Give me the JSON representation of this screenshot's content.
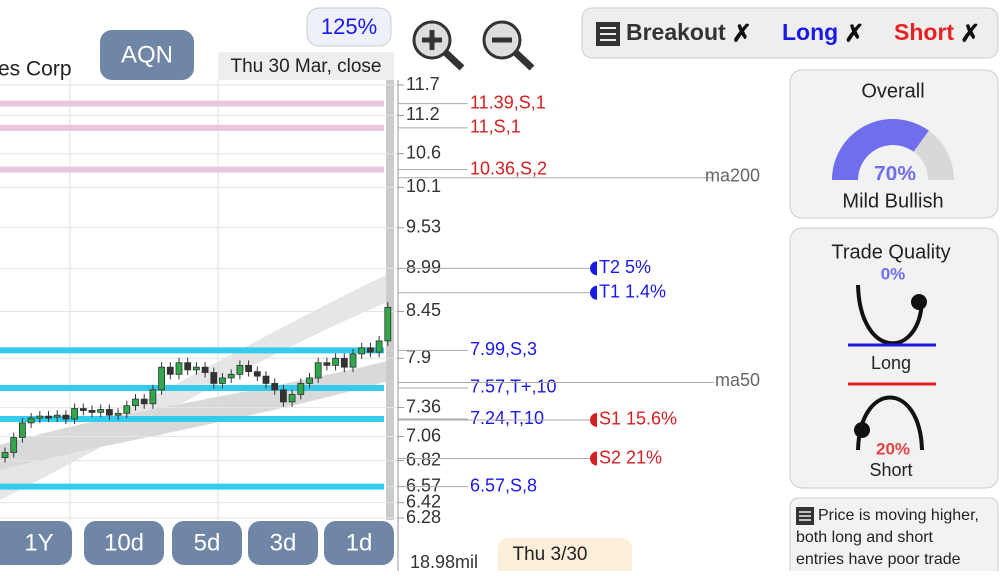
{
  "header": {
    "company": "es Corp",
    "ticker": "AQN",
    "zoom": "125%",
    "date": "Thu 30 Mar, close"
  },
  "filters": [
    {
      "label": "Breakout",
      "mark": "✗",
      "color": "#333333"
    },
    {
      "label": "Long",
      "mark": "✗",
      "color": "#1a1ae6"
    },
    {
      "label": "Short",
      "mark": "✗",
      "color": "#e62222"
    }
  ],
  "price_axis": {
    "ticks": [
      11.7,
      11.2,
      10.6,
      10.1,
      9.53,
      8.99,
      8.45,
      7.9,
      7.36,
      7.06,
      6.82,
      6.57,
      6.42,
      6.28
    ],
    "log_scale": true
  },
  "bands": [
    {
      "value": 11.39,
      "label": "11.39,S,1",
      "color": "#e8c6de",
      "text_color": "#d42020"
    },
    {
      "value": 11,
      "label": "11,S,1",
      "color": "#e8c6de",
      "text_color": "#d42020"
    },
    {
      "value": 10.36,
      "label": "10.36,S,2",
      "color": "#e8c6de",
      "text_color": "#d42020"
    },
    {
      "value": 7.99,
      "label": "7.99,S,3",
      "color": "#33ccee",
      "text_color": "#1a1ae6"
    },
    {
      "value": 7.57,
      "label": "7.57,T+,10",
      "color": "#33ccee",
      "text_color": "#1a1ae6"
    },
    {
      "value": 7.24,
      "label": "7.24,T,10",
      "color": "#33ccee",
      "text_color": "#1a1ae6"
    },
    {
      "value": 6.57,
      "label": "6.57,S,8",
      "color": "#33ccee",
      "text_color": "#1a1ae6"
    }
  ],
  "moving_averages": [
    {
      "value": 10.24,
      "label": "ma200"
    },
    {
      "value": 7.63,
      "label": "ma50"
    }
  ],
  "markers": [
    {
      "value": 8.99,
      "label": "T2 5%",
      "color": "#1a1ae6"
    },
    {
      "value": 8.68,
      "label": "T1 1.4%",
      "color": "#1a1ae6"
    },
    {
      "value": 7.23,
      "label": "S1 15.6%",
      "color": "#d42020"
    },
    {
      "value": 6.84,
      "label": "S2 21%",
      "color": "#d42020"
    }
  ],
  "candles": {
    "start": 6.85,
    "closes": [
      6.9,
      7.05,
      7.2,
      7.25,
      7.27,
      7.26,
      7.28,
      7.24,
      7.35,
      7.33,
      7.31,
      7.34,
      7.28,
      7.3,
      7.38,
      7.45,
      7.4,
      7.55,
      7.8,
      7.72,
      7.85,
      7.77,
      7.8,
      7.74,
      7.62,
      7.68,
      7.72,
      7.82,
      7.75,
      7.7,
      7.62,
      7.55,
      7.42,
      7.5,
      7.62,
      7.68,
      7.85,
      7.82,
      7.9,
      7.8,
      7.95,
      8.02,
      7.97,
      8.1,
      8.5
    ]
  },
  "ranges": [
    "1Y",
    "10d",
    "5d",
    "3d",
    "1d"
  ],
  "volume": "18.98mil",
  "bottom_date": "Thu 3/30",
  "overall": {
    "title": "Overall",
    "gauge_value": 70,
    "gauge_label": "70%",
    "verdict": "Mild Bullish"
  },
  "trade_quality": {
    "title": "Trade Quality",
    "long_value": "0%",
    "long_label": "Long",
    "short_value": "20%",
    "short_label": "Short"
  },
  "note": {
    "lines": [
      "Price is moving higher,",
      "both long and short",
      "entries have poor trade"
    ]
  }
}
